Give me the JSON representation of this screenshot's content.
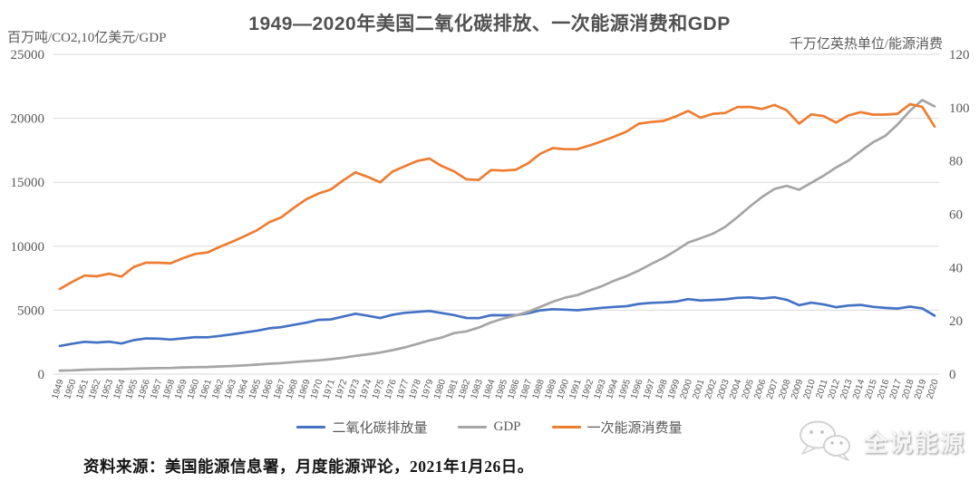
{
  "title": "1949—2020年美国二氧化碳排放、一次能源消费和GDP",
  "axes": {
    "left": {
      "unit_label": "百万吨/CO2,10亿美元/GDP",
      "ticks": [
        0,
        5000,
        10000,
        15000,
        20000,
        25000
      ]
    },
    "right": {
      "unit_label": "千万亿英热单位/能源消费",
      "ticks": [
        0,
        20,
        40,
        60,
        80,
        100,
        120
      ]
    }
  },
  "legend": {
    "items": [
      {
        "label": "二氧化碳排放量",
        "color": "#4472C4"
      },
      {
        "label": "GDP",
        "color": "#A5A5A5"
      },
      {
        "label": "一次能源消费量",
        "color": "#ED7D31"
      }
    ]
  },
  "chart_data": {
    "type": "line",
    "x": [
      1949,
      1950,
      1951,
      1952,
      1953,
      1954,
      1955,
      1956,
      1957,
      1958,
      1959,
      1960,
      1961,
      1962,
      1963,
      1964,
      1965,
      1966,
      1967,
      1968,
      1969,
      1970,
      1971,
      1972,
      1973,
      1974,
      1975,
      1976,
      1977,
      1978,
      1979,
      1980,
      1981,
      1982,
      1983,
      1984,
      1985,
      1986,
      1987,
      1988,
      1989,
      1990,
      1991,
      1992,
      1993,
      1994,
      1995,
      1996,
      1997,
      1998,
      1999,
      2000,
      2001,
      2002,
      2003,
      2004,
      2005,
      2006,
      2007,
      2008,
      2009,
      2010,
      2011,
      2012,
      2013,
      2014,
      2015,
      2016,
      2017,
      2018,
      2019,
      2020
    ],
    "series": [
      {
        "name": "二氧化碳排放量",
        "axis": "left",
        "color": "#4472C4",
        "values": [
          2206,
          2382,
          2526,
          2473,
          2538,
          2395,
          2654,
          2789,
          2776,
          2708,
          2798,
          2890,
          2880,
          2987,
          3119,
          3255,
          3390,
          3587,
          3674,
          3856,
          4026,
          4243,
          4278,
          4501,
          4727,
          4560,
          4383,
          4647,
          4796,
          4868,
          4937,
          4776,
          4620,
          4391,
          4376,
          4612,
          4602,
          4611,
          4762,
          4986,
          5077,
          5040,
          4992,
          5086,
          5183,
          5252,
          5311,
          5490,
          5572,
          5608,
          5672,
          5862,
          5759,
          5803,
          5847,
          5966,
          5997,
          5915,
          6004,
          5817,
          5390,
          5585,
          5449,
          5237,
          5362,
          5411,
          5265,
          5174,
          5131,
          5275,
          5144,
          4575
        ]
      },
      {
        "name": "GDP",
        "axis": "left",
        "color": "#A5A5A5",
        "values": [
          273,
          300,
          347,
          368,
          390,
          391,
          426,
          450,
          475,
          482,
          523,
          543,
          563,
          605,
          639,
          686,
          744,
          815,
          862,
          943,
          1020,
          1076,
          1168,
          1282,
          1429,
          1549,
          1689,
          1878,
          2086,
          2357,
          2632,
          2863,
          3211,
          3345,
          3638,
          4041,
          4347,
          4590,
          4870,
          5253,
          5658,
          5980,
          6174,
          6539,
          6879,
          7309,
          7664,
          8100,
          8609,
          9089,
          9661,
          10285,
          10622,
          10978,
          11511,
          12275,
          13094,
          13856,
          14478,
          14719,
          14419,
          14964,
          15518,
          16155,
          16692,
          17428,
          18121,
          18625,
          19519,
          20580,
          21428,
          20937
        ]
      },
      {
        "name": "一次能源消费量",
        "axis": "right",
        "color": "#ED7D31",
        "values": [
          32.0,
          34.6,
          37.0,
          36.7,
          37.7,
          36.6,
          40.2,
          41.8,
          41.8,
          41.6,
          43.5,
          45.1,
          45.7,
          47.8,
          49.7,
          51.8,
          54.0,
          57.0,
          58.9,
          62.4,
          65.6,
          67.8,
          69.3,
          72.7,
          75.7,
          74.0,
          72.0,
          76.0,
          78.0,
          80.0,
          80.9,
          78.1,
          76.1,
          73.1,
          72.9,
          76.6,
          76.4,
          76.7,
          79.1,
          82.7,
          84.8,
          84.4,
          84.4,
          85.8,
          87.4,
          89.1,
          91.0,
          94.0,
          94.6,
          95.0,
          96.7,
          98.8,
          96.2,
          97.7,
          98.0,
          100.2,
          100.3,
          99.5,
          101.0,
          99.0,
          94.0,
          97.5,
          96.8,
          94.4,
          97.1,
          98.3,
          97.4,
          97.4,
          97.7,
          101.3,
          100.3,
          92.9
        ]
      }
    ],
    "title": "1949—2020年美国二氧化碳排放、一次能源消费和GDP",
    "left_ylabel": "百万吨/CO2,10亿美元/GDP",
    "right_ylabel": "千万亿英热单位/能源消费",
    "left_ylim": [
      0,
      25000
    ],
    "right_ylim": [
      0,
      120
    ],
    "grid": true,
    "legend_position": "bottom"
  },
  "source_note": "资料来源：美国能源信息署，月度能源评论，2021年1月26日。",
  "watermark": {
    "text": "全说能源",
    "icon": "wechat-icon"
  },
  "colors": {
    "co2_line": "#4472C4",
    "gdp_line": "#A5A5A5",
    "energy_line": "#ED7D31",
    "gridline": "#D9D9D9",
    "tick_text": "#595959",
    "title_text": "#515151"
  }
}
